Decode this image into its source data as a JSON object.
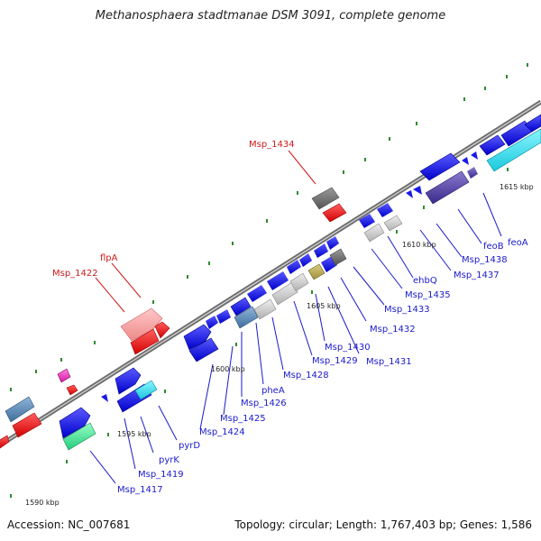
{
  "title": "Methanosphaera stadtmanae DSM 3091, complete genome",
  "footer": {
    "accession": "Accession: NC_007681",
    "summary": "Topology: circular; Length: 1,767,403 bp; Genes: 1,586"
  },
  "colors": {
    "backbone": "#777777",
    "forward_gene": "#1a1ae6",
    "reverse_gene": "#e61a1a",
    "label_blue": "#1a1acc",
    "label_red": "#cc1a1a",
    "gc_dots": "#2e8b2e"
  },
  "ticks": [
    "1590 kbp",
    "1595 kbp",
    "1600 kbp",
    "1605 kbp",
    "1610 kbp",
    "1615 kbp"
  ],
  "labels": [
    {
      "text": "Msp_1434",
      "color": "red"
    },
    {
      "text": "flpA",
      "color": "red"
    },
    {
      "text": "Msp_1422",
      "color": "red"
    },
    {
      "text": "feoA",
      "color": "blue"
    },
    {
      "text": "feoB",
      "color": "blue"
    },
    {
      "text": "Msp_1438",
      "color": "blue"
    },
    {
      "text": "Msp_1437",
      "color": "blue"
    },
    {
      "text": "ehbQ",
      "color": "blue"
    },
    {
      "text": "Msp_1435",
      "color": "blue"
    },
    {
      "text": "Msp_1433",
      "color": "blue"
    },
    {
      "text": "Msp_1432",
      "color": "blue"
    },
    {
      "text": "Msp_1431",
      "color": "blue"
    },
    {
      "text": "Msp_1430",
      "color": "blue"
    },
    {
      "text": "Msp_1429",
      "color": "blue"
    },
    {
      "text": "Msp_1428",
      "color": "blue"
    },
    {
      "text": "pheA",
      "color": "blue"
    },
    {
      "text": "Msp_1426",
      "color": "blue"
    },
    {
      "text": "Msp_1425",
      "color": "blue"
    },
    {
      "text": "Msp_1424",
      "color": "blue"
    },
    {
      "text": "pyrD",
      "color": "blue"
    },
    {
      "text": "pyrK",
      "color": "blue"
    },
    {
      "text": "Msp_1419",
      "color": "blue"
    },
    {
      "text": "Msp_1417",
      "color": "blue"
    }
  ]
}
